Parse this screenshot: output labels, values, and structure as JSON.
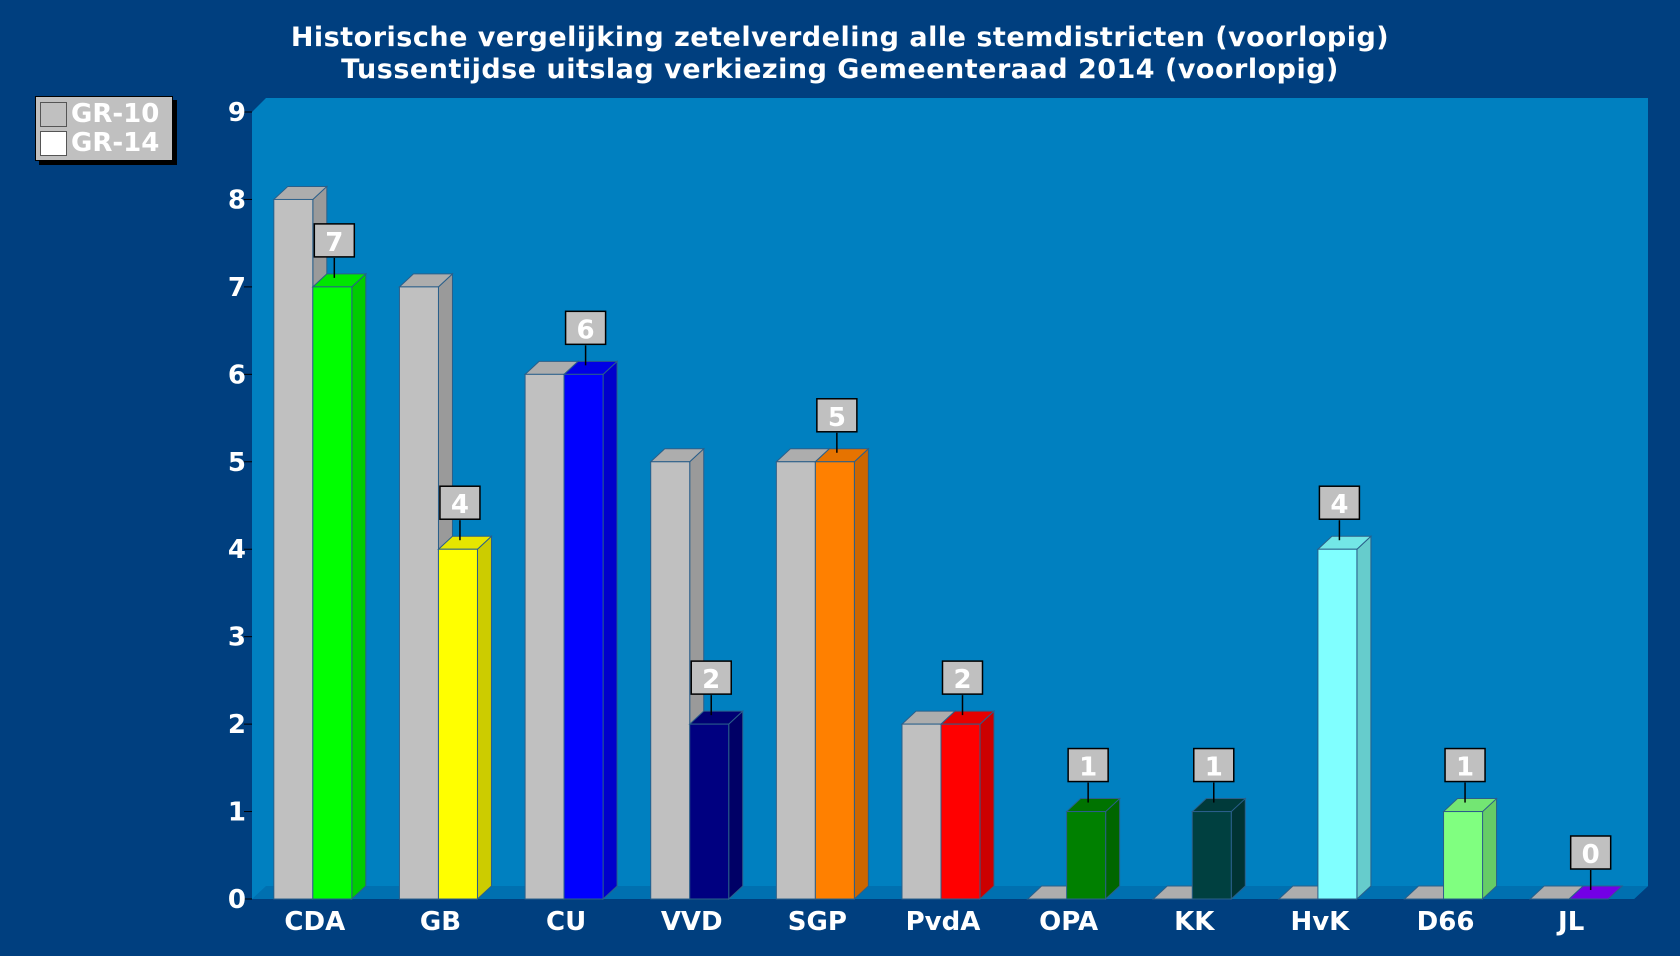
{
  "title": "Historische vergelijking zetelverdeling alle stemdistricten (voorlopig)",
  "subtitle": "Tussentijdse uitslag verkiezing Gemeenteraad 2014 (voorlopig)",
  "legend": [
    {
      "label": "GR-10",
      "color": "#c0c0c0"
    },
    {
      "label": "GR-14",
      "color": "#ffffff"
    }
  ],
  "chart_data": {
    "type": "bar",
    "title": "Historische vergelijking zetelverdeling alle stemdistricten (voorlopig)",
    "subtitle": "Tussentijdse uitslag verkiezing Gemeenteraad 2014 (voorlopig)",
    "categories": [
      "CDA",
      "GB",
      "CU",
      "VVD",
      "SGP",
      "PvdA",
      "OPA",
      "KK",
      "HvK",
      "D66",
      "JL"
    ],
    "ylim": [
      0,
      9
    ],
    "yticks": [
      0,
      1,
      2,
      3,
      4,
      5,
      6,
      7,
      8,
      9
    ],
    "legend_position": "top-left",
    "grid": false,
    "series": [
      {
        "name": "GR-10",
        "values": [
          8,
          7,
          6,
          5,
          5,
          2,
          0,
          0,
          0,
          0,
          0
        ],
        "color": "#c0c0c0",
        "data_labels": false
      },
      {
        "name": "GR-14",
        "values": [
          7,
          4,
          6,
          2,
          5,
          2,
          1,
          1,
          4,
          1,
          0
        ],
        "colors": [
          "#00ff00",
          "#ffff00",
          "#0000ff",
          "#000080",
          "#ff8000",
          "#ff0000",
          "#008000",
          "#004040",
          "#80ffff",
          "#80ff80",
          "#8000ff"
        ],
        "data_labels": true
      }
    ]
  }
}
